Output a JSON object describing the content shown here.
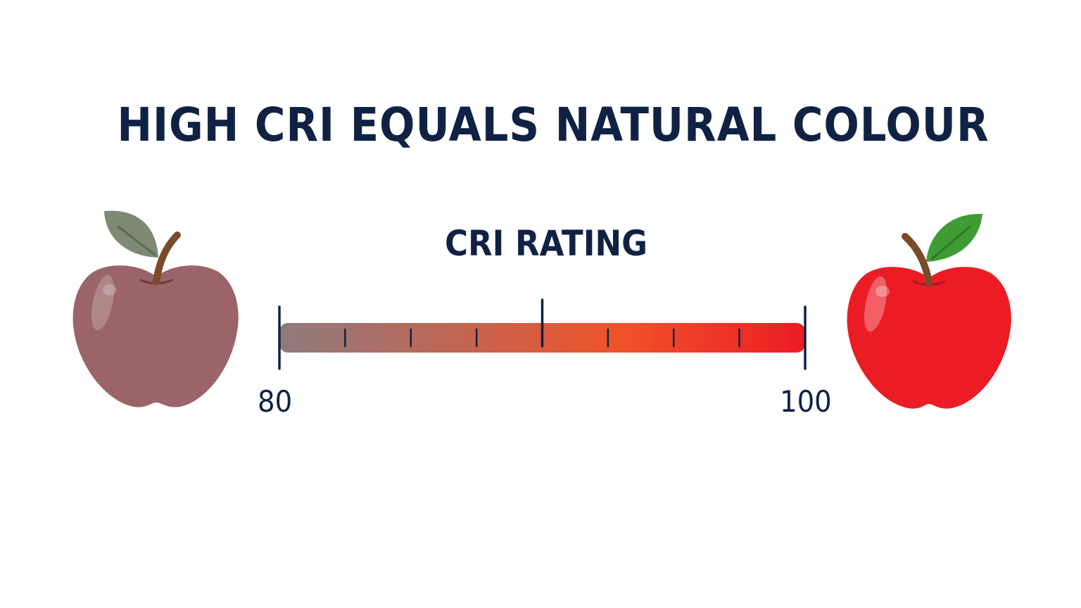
{
  "title": "HIGH CRI EQUALS NATURAL COLOUR",
  "scale": {
    "heading": "CRI RATING",
    "min_label": "80",
    "max_label": "100",
    "min_value": 80,
    "max_value": 100,
    "minor_ticks_per_half": 3
  },
  "colors": {
    "text": "#0f2244",
    "bar_start": "#8f7b7e",
    "bar_mid": "#f0522a",
    "bar_end": "#ec1c24",
    "dull_apple": "#9a6468",
    "dull_leaf": "#7e8a73",
    "vivid_apple": "#ec1c24",
    "vivid_leaf": "#3f9c35",
    "stem": "#7b4a2a"
  },
  "icons": {
    "left": "dull-apple-icon",
    "right": "vivid-apple-icon"
  }
}
